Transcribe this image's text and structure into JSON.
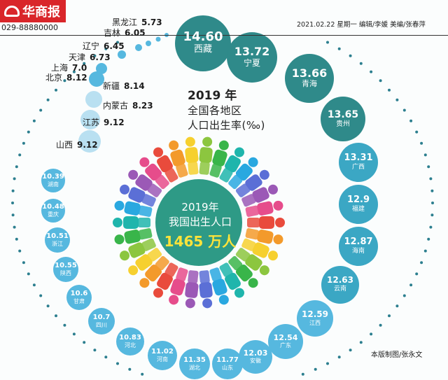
{
  "header": {
    "logo_text": "华商报",
    "phone": "029-88880000",
    "dateline": "2021.02.22  星期一 编辑/李媛  美编/张春萍"
  },
  "chart_title": {
    "year": "2019 年",
    "line1": "全国各地区",
    "line2": "人口出生率(‰)"
  },
  "center": {
    "line1": "2019年",
    "line2": "我国出生人口",
    "line3": "1465 万人"
  },
  "credit": "本版制图/张永文",
  "colors": {
    "big_bubble": "#2f8a8a",
    "mid_bubble": "#3ba7c4",
    "small_bubble": "#56b8df",
    "light_bubble": "#b9e0f1",
    "dots": "#2c7f8f",
    "center_disc": "#2e9a86",
    "logo_red": "#d9262a",
    "highlight": "#ffe33a"
  },
  "chart_data": {
    "type": "bubble-ring",
    "unit": "‰",
    "regions": [
      {
        "name": "西藏",
        "value": 14.6
      },
      {
        "name": "宁夏",
        "value": 13.72
      },
      {
        "name": "青海",
        "value": 13.66
      },
      {
        "name": "贵州",
        "value": 13.65
      },
      {
        "name": "广西",
        "value": 13.31
      },
      {
        "name": "福建",
        "value": 12.9
      },
      {
        "name": "海南",
        "value": 12.87
      },
      {
        "name": "云南",
        "value": 12.63
      },
      {
        "name": "江西",
        "value": 12.59
      },
      {
        "name": "广东",
        "value": 12.54
      },
      {
        "name": "安徽",
        "value": 12.03
      },
      {
        "name": "山东",
        "value": 11.77
      },
      {
        "name": "湖北",
        "value": 11.35
      },
      {
        "name": "河南",
        "value": 11.02
      },
      {
        "name": "河北",
        "value": 10.83
      },
      {
        "name": "四川",
        "value": 10.7
      },
      {
        "name": "甘肃",
        "value": 10.6
      },
      {
        "name": "陕西",
        "value": 10.55
      },
      {
        "name": "浙江",
        "value": 10.51
      },
      {
        "name": "重庆",
        "value": 10.48
      },
      {
        "name": "湖南",
        "value": 10.39
      },
      {
        "name": "山西",
        "value": 9.12
      },
      {
        "name": "江苏",
        "value": 9.12
      },
      {
        "name": "内蒙古",
        "value": 8.23
      },
      {
        "name": "新疆",
        "value": 8.14
      },
      {
        "name": "北京",
        "value": 8.12
      },
      {
        "name": "上海",
        "value": 7.0
      },
      {
        "name": "天津",
        "value": 6.73
      },
      {
        "name": "辽宁",
        "value": 6.45
      },
      {
        "name": "吉林",
        "value": 6.05
      },
      {
        "name": "黑龙江",
        "value": 5.73
      }
    ]
  }
}
